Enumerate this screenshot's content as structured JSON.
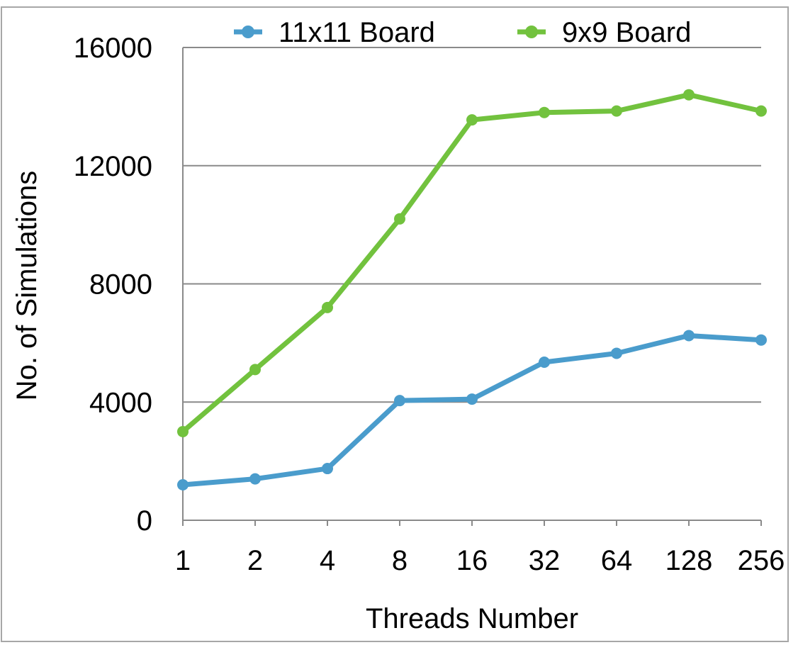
{
  "chart_data": {
    "type": "line",
    "title": "",
    "xlabel": "Threads Number",
    "ylabel": "No. of Simulations",
    "categories": [
      "1",
      "2",
      "4",
      "8",
      "16",
      "32",
      "64",
      "128",
      "256"
    ],
    "ylim": [
      0,
      16000
    ],
    "yticks": [
      0,
      4000,
      8000,
      12000,
      16000
    ],
    "ytick_labels": [
      "0",
      "4000",
      "8000",
      "12000",
      "16000"
    ],
    "grid": "horizontal",
    "legend_position": "top",
    "series": [
      {
        "name": "11x11 Board",
        "color": "#4a9ccc",
        "values": [
          1200,
          1400,
          1750,
          4050,
          4100,
          5350,
          5650,
          6250,
          6100
        ]
      },
      {
        "name": "9x9 Board",
        "color": "#72c23e",
        "values": [
          3000,
          5100,
          7200,
          10200,
          13550,
          13800,
          13850,
          14400,
          13850
        ]
      }
    ]
  }
}
